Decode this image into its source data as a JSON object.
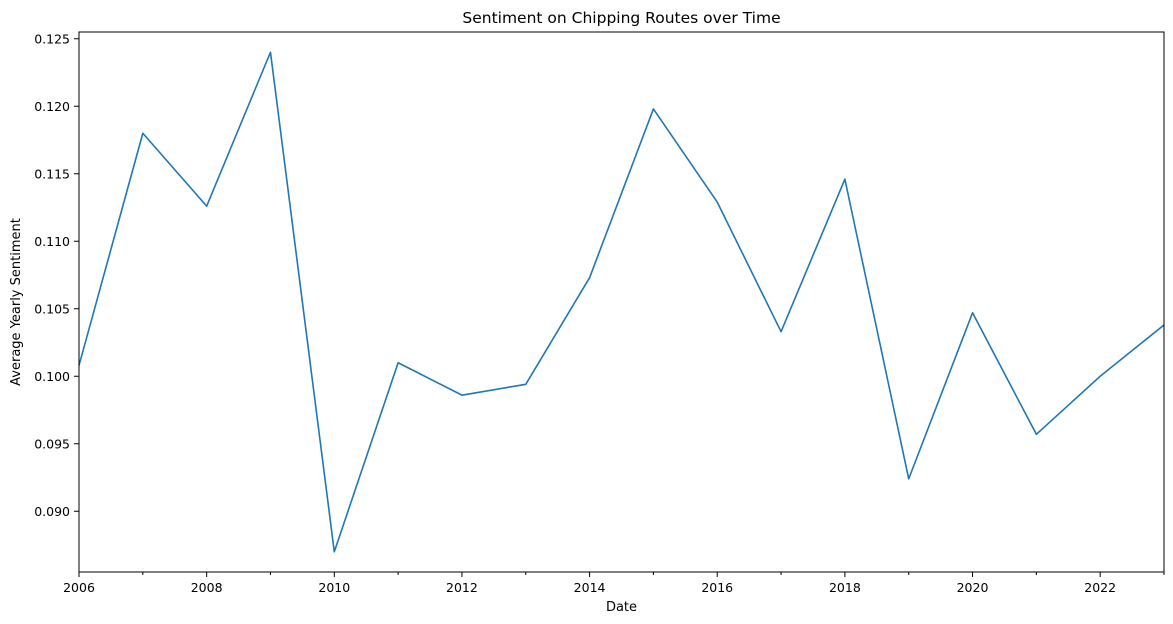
{
  "chart_data": {
    "type": "line",
    "title": "Sentiment on Chipping Routes over Time",
    "xlabel": "Date",
    "ylabel": "Average Yearly Sentiment",
    "xlim": [
      2006,
      2023
    ],
    "ylim": [
      0.0855,
      0.1255
    ],
    "x_ticks_major": [
      "2006",
      "2008",
      "2010",
      "2012",
      "2014",
      "2016",
      "2018",
      "2020",
      "2022"
    ],
    "y_ticks": [
      "0.090",
      "0.095",
      "0.100",
      "0.105",
      "0.110",
      "0.115",
      "0.120",
      "0.125"
    ],
    "grid": false,
    "legend": "none",
    "series": [
      {
        "color": "#1f77b4",
        "x": [
          2006,
          2007,
          2008,
          2009,
          2010,
          2011,
          2012,
          2013,
          2014,
          2015,
          2016,
          2017,
          2018,
          2019,
          2020,
          2021,
          2022,
          2023
        ],
        "y": [
          0.1008,
          0.118,
          0.1126,
          0.124,
          0.087,
          0.101,
          0.0986,
          0.0994,
          0.1073,
          0.1198,
          0.1129,
          0.1033,
          0.1146,
          0.0924,
          0.1047,
          0.0957,
          0.1,
          0.1038
        ]
      }
    ]
  }
}
